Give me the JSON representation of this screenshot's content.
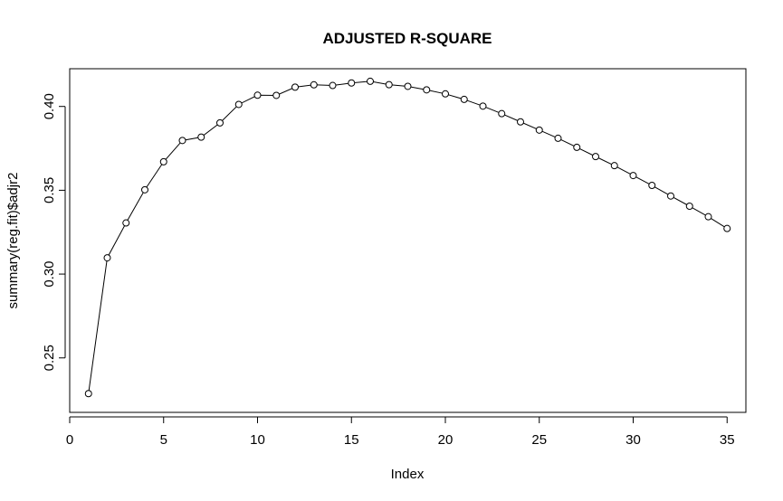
{
  "chart_data": {
    "type": "line",
    "title": "ADJUSTED R-SQUARE",
    "xlabel": "Index",
    "ylabel": "summary(reg.fit)$adjr2",
    "xlim": [
      0,
      36
    ],
    "ylim": [
      0.2175,
      0.4225
    ],
    "x_ticks": [
      0,
      5,
      10,
      15,
      20,
      25,
      30,
      35
    ],
    "x_tick_labels": [
      "0",
      "5",
      "10",
      "15",
      "20",
      "25",
      "30",
      "35"
    ],
    "y_ticks": [
      0.25,
      0.3,
      0.35,
      0.4
    ],
    "y_tick_labels": [
      "0.25",
      "0.30",
      "0.35",
      "0.40"
    ],
    "grid": false,
    "legend": "none",
    "marker": "open-circle",
    "series": [
      {
        "x": [
          1,
          2,
          3,
          4,
          5,
          6,
          7,
          8,
          9,
          10,
          11,
          12,
          13,
          14,
          15,
          16,
          17,
          18,
          19,
          20,
          21,
          22,
          23,
          24,
          25,
          26,
          27,
          28,
          29,
          30,
          31,
          32,
          33,
          34,
          35
        ],
        "values": [
          0.2287,
          0.3097,
          0.3305,
          0.3503,
          0.367,
          0.3797,
          0.3817,
          0.3902,
          0.4012,
          0.4067,
          0.4066,
          0.4115,
          0.4129,
          0.4125,
          0.414,
          0.415,
          0.413,
          0.412,
          0.4099,
          0.4075,
          0.4042,
          0.4002,
          0.3957,
          0.3908,
          0.3859,
          0.381,
          0.3756,
          0.3701,
          0.3647,
          0.3588,
          0.3529,
          0.3466,
          0.3405,
          0.3342,
          0.3272
        ]
      }
    ]
  }
}
